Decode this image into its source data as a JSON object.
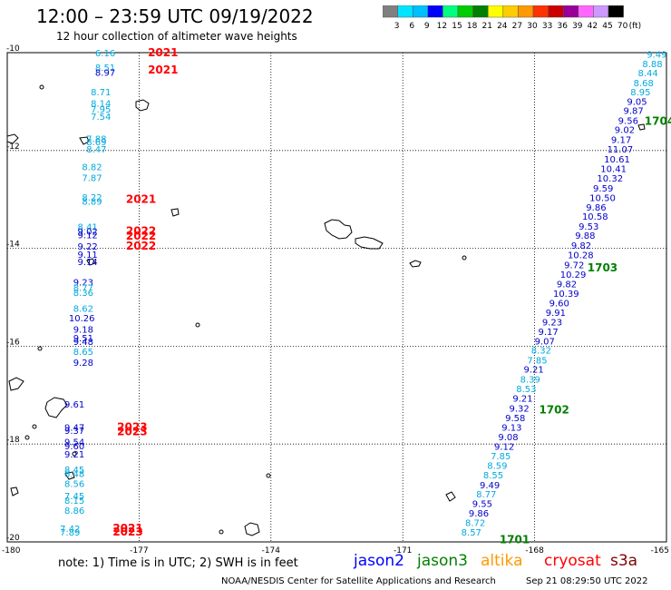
{
  "title": "12:00 – 23:59 UTC 09/19/2022",
  "subtitle": "12 hour collection of altimeter wave heights",
  "colorbar": {
    "labels": [
      "3",
      "6",
      "9",
      "12",
      "15",
      "18",
      "21",
      "24",
      "27",
      "30",
      "33",
      "36",
      "39",
      "42",
      "45",
      "70"
    ],
    "unit": "(ft)",
    "colors": [
      "#808080",
      "#00e5ff",
      "#00bfff",
      "#0000ff",
      "#00ff7f",
      "#00cc00",
      "#008000",
      "#ffff00",
      "#ffcc00",
      "#ff9900",
      "#ff3300",
      "#cc0000",
      "#990099",
      "#ff66ff",
      "#cc99ff",
      "#000000"
    ]
  },
  "map": {
    "lat_labels": [
      "-10",
      "-12",
      "-14",
      "-16",
      "-18",
      "-20"
    ],
    "lon_labels": [
      "-180",
      "-177",
      "-174",
      "-171",
      "-168",
      "-165"
    ],
    "tracks": [
      {
        "pass": "2021",
        "color": "#ff0000",
        "lon": -176.8,
        "lat": -10.0
      },
      {
        "pass": "2021",
        "color": "#ff0000",
        "lon": -176.8,
        "lat": -10.35
      },
      {
        "pass": "2021",
        "color": "#ff0000",
        "lon": -177.3,
        "lat": -13.0
      },
      {
        "pass": "2022",
        "color": "#ff0000",
        "lon": -177.3,
        "lat": -13.65
      },
      {
        "pass": "2022",
        "color": "#ff0000",
        "lon": -177.3,
        "lat": -13.75
      },
      {
        "pass": "2022",
        "color": "#ff0000",
        "lon": -177.3,
        "lat": -13.95
      },
      {
        "pass": "2023",
        "color": "#ff0000",
        "lon": -177.5,
        "lat": -17.65
      },
      {
        "pass": "2023",
        "color": "#ff0000",
        "lon": -177.5,
        "lat": -17.75
      },
      {
        "pass": "2021",
        "color": "#ff0000",
        "lon": -177.6,
        "lat": -19.72
      },
      {
        "pass": "2023",
        "color": "#ff0000",
        "lon": -177.6,
        "lat": -19.8
      },
      {
        "pass": "1704",
        "color": "#008000",
        "lon": -165.5,
        "lat": -11.4
      },
      {
        "pass": "1703",
        "color": "#008000",
        "lon": -166.8,
        "lat": -14.4
      },
      {
        "pass": "1702",
        "color": "#008000",
        "lon": -167.9,
        "lat": -17.3
      },
      {
        "pass": "1701",
        "color": "#008000",
        "lon": -168.8,
        "lat": -19.95
      }
    ],
    "left_values": [
      {
        "v": "6.16",
        "c": "#00aadd",
        "lon": -178.0,
        "lat": -10.0
      },
      {
        "v": "8.51",
        "c": "#00aadd",
        "lon": -178.0,
        "lat": -10.3
      },
      {
        "v": "8.97",
        "c": "#0000cc",
        "lon": -178.0,
        "lat": -10.4
      },
      {
        "v": "8.71",
        "c": "#00aadd",
        "lon": -178.1,
        "lat": -10.8
      },
      {
        "v": "8.14",
        "c": "#00aadd",
        "lon": -178.1,
        "lat": -11.03
      },
      {
        "v": "7.95",
        "c": "#00aadd",
        "lon": -178.1,
        "lat": -11.15
      },
      {
        "v": "7.54",
        "c": "#00aadd",
        "lon": -178.1,
        "lat": -11.3
      },
      {
        "v": "7.88",
        "c": "#00aadd",
        "lon": -178.2,
        "lat": -11.75
      },
      {
        "v": "8.69",
        "c": "#00aadd",
        "lon": -178.2,
        "lat": -11.82
      },
      {
        "v": "8.47",
        "c": "#00aadd",
        "lon": -178.2,
        "lat": -11.97
      },
      {
        "v": "8.82",
        "c": "#00aadd",
        "lon": -178.3,
        "lat": -12.33
      },
      {
        "v": "7.87",
        "c": "#00aadd",
        "lon": -178.3,
        "lat": -12.55
      },
      {
        "v": "8.22",
        "c": "#00aadd",
        "lon": -178.3,
        "lat": -12.95
      },
      {
        "v": "8.89",
        "c": "#00aadd",
        "lon": -178.3,
        "lat": -13.03
      },
      {
        "v": "8.41",
        "c": "#00aadd",
        "lon": -178.4,
        "lat": -13.55
      },
      {
        "v": "9.02",
        "c": "#0000cc",
        "lon": -178.4,
        "lat": -13.65
      },
      {
        "v": "9.12",
        "c": "#0000cc",
        "lon": -178.4,
        "lat": -13.72
      },
      {
        "v": "9.22",
        "c": "#0000cc",
        "lon": -178.4,
        "lat": -13.95
      },
      {
        "v": "9.11",
        "c": "#0000cc",
        "lon": -178.4,
        "lat": -14.12
      },
      {
        "v": "9.14",
        "c": "#0000cc",
        "lon": -178.4,
        "lat": -14.27
      },
      {
        "v": "9.23",
        "c": "#0000cc",
        "lon": -178.5,
        "lat": -14.68
      },
      {
        "v": "8.77",
        "c": "#00aadd",
        "lon": -178.5,
        "lat": -14.8
      },
      {
        "v": "8.36",
        "c": "#00aadd",
        "lon": -178.5,
        "lat": -14.9
      },
      {
        "v": "8.62",
        "c": "#00aadd",
        "lon": -178.5,
        "lat": -15.22
      },
      {
        "v": "10.26",
        "c": "#0000cc",
        "lon": -178.6,
        "lat": -15.42
      },
      {
        "v": "9.18",
        "c": "#0000cc",
        "lon": -178.5,
        "lat": -15.65
      },
      {
        "v": "9.51",
        "c": "#0000cc",
        "lon": -178.5,
        "lat": -15.83
      },
      {
        "v": "9.48",
        "c": "#0000cc",
        "lon": -178.5,
        "lat": -15.9
      },
      {
        "v": "8.65",
        "c": "#00aadd",
        "lon": -178.5,
        "lat": -16.1
      },
      {
        "v": "9.28",
        "c": "#0000cc",
        "lon": -178.5,
        "lat": -16.33
      },
      {
        "v": "9.61",
        "c": "#0000cc",
        "lon": -178.7,
        "lat": -17.18
      },
      {
        "v": "9.47",
        "c": "#0000cc",
        "lon": -178.7,
        "lat": -17.65
      },
      {
        "v": "9.37",
        "c": "#0000cc",
        "lon": -178.7,
        "lat": -17.72
      },
      {
        "v": "9.54",
        "c": "#0000cc",
        "lon": -178.7,
        "lat": -17.95
      },
      {
        "v": "9.60",
        "c": "#0000cc",
        "lon": -178.7,
        "lat": -18.03
      },
      {
        "v": "9.21",
        "c": "#0000cc",
        "lon": -178.7,
        "lat": -18.2
      },
      {
        "v": "8.45",
        "c": "#00aadd",
        "lon": -178.7,
        "lat": -18.52
      },
      {
        "v": "8.48",
        "c": "#00aadd",
        "lon": -178.7,
        "lat": -18.6
      },
      {
        "v": "8.56",
        "c": "#00aadd",
        "lon": -178.7,
        "lat": -18.8
      },
      {
        "v": "7.45",
        "c": "#00aadd",
        "lon": -178.7,
        "lat": -19.05
      },
      {
        "v": "8.15",
        "c": "#00aadd",
        "lon": -178.7,
        "lat": -19.15
      },
      {
        "v": "8.86",
        "c": "#00aadd",
        "lon": -178.7,
        "lat": -19.35
      },
      {
        "v": "7.42",
        "c": "#00aadd",
        "lon": -178.8,
        "lat": -19.72
      },
      {
        "v": "7.89",
        "c": "#00aadd",
        "lon": -178.8,
        "lat": -19.8
      }
    ],
    "right_values": [
      {
        "v": "9.49",
        "c": "#00aadd",
        "lon": -165.45,
        "lat": -10.03
      },
      {
        "v": "8.88",
        "c": "#00aadd",
        "lon": -165.55,
        "lat": -10.22
      },
      {
        "v": "8.44",
        "c": "#00aadd",
        "lon": -165.65,
        "lat": -10.41
      },
      {
        "v": "8.68",
        "c": "#00aadd",
        "lon": -165.75,
        "lat": -10.61
      },
      {
        "v": "8.95",
        "c": "#00aadd",
        "lon": -165.82,
        "lat": -10.8
      },
      {
        "v": "9.05",
        "c": "#0000cc",
        "lon": -165.9,
        "lat": -10.99
      },
      {
        "v": "9.87",
        "c": "#0000cc",
        "lon": -165.98,
        "lat": -11.18
      },
      {
        "v": "9.56",
        "c": "#0000cc",
        "lon": -166.1,
        "lat": -11.38
      },
      {
        "v": "9.02",
        "c": "#0000cc",
        "lon": -166.18,
        "lat": -11.57
      },
      {
        "v": "9.17",
        "c": "#0000cc",
        "lon": -166.26,
        "lat": -11.77
      },
      {
        "v": "11.07",
        "c": "#0000cc",
        "lon": -166.35,
        "lat": -11.97
      },
      {
        "v": "10.61",
        "c": "#0000cc",
        "lon": -166.42,
        "lat": -12.17
      },
      {
        "v": "10.41",
        "c": "#0000cc",
        "lon": -166.5,
        "lat": -12.37
      },
      {
        "v": "10.32",
        "c": "#0000cc",
        "lon": -166.58,
        "lat": -12.56
      },
      {
        "v": "9.59",
        "c": "#0000cc",
        "lon": -166.67,
        "lat": -12.76
      },
      {
        "v": "10.50",
        "c": "#0000cc",
        "lon": -166.75,
        "lat": -12.96
      },
      {
        "v": "9.86",
        "c": "#0000cc",
        "lon": -166.83,
        "lat": -13.15
      },
      {
        "v": "10.58",
        "c": "#0000cc",
        "lon": -166.92,
        "lat": -13.34
      },
      {
        "v": "9.53",
        "c": "#0000cc",
        "lon": -167.0,
        "lat": -13.54
      },
      {
        "v": "9.88",
        "c": "#0000cc",
        "lon": -167.08,
        "lat": -13.73
      },
      {
        "v": "9.82",
        "c": "#0000cc",
        "lon": -167.17,
        "lat": -13.93
      },
      {
        "v": "10.28",
        "c": "#0000cc",
        "lon": -167.25,
        "lat": -14.13
      },
      {
        "v": "9.72",
        "c": "#0000cc",
        "lon": -167.33,
        "lat": -14.33
      },
      {
        "v": "10.29",
        "c": "#0000cc",
        "lon": -167.42,
        "lat": -14.53
      },
      {
        "v": "9.82",
        "c": "#0000cc",
        "lon": -167.5,
        "lat": -14.72
      },
      {
        "v": "10.39",
        "c": "#0000cc",
        "lon": -167.58,
        "lat": -14.92
      },
      {
        "v": "9.60",
        "c": "#0000cc",
        "lon": -167.67,
        "lat": -15.11
      },
      {
        "v": "9.91",
        "c": "#0000cc",
        "lon": -167.75,
        "lat": -15.31
      },
      {
        "v": "9.23",
        "c": "#0000cc",
        "lon": -167.83,
        "lat": -15.5
      },
      {
        "v": "9.17",
        "c": "#0000cc",
        "lon": -167.92,
        "lat": -15.7
      },
      {
        "v": "9.07",
        "c": "#0000cc",
        "lon": -168.0,
        "lat": -15.89
      },
      {
        "v": "8.32",
        "c": "#00aadd",
        "lon": -168.08,
        "lat": -16.08
      },
      {
        "v": "7.85",
        "c": "#00aadd",
        "lon": -168.17,
        "lat": -16.28
      },
      {
        "v": "9.21",
        "c": "#0000cc",
        "lon": -168.25,
        "lat": -16.47
      },
      {
        "v": "8.39",
        "c": "#00aadd",
        "lon": -168.33,
        "lat": -16.67
      },
      {
        "v": "8.53",
        "c": "#00aadd",
        "lon": -168.42,
        "lat": -16.86
      },
      {
        "v": "9.21",
        "c": "#0000cc",
        "lon": -168.5,
        "lat": -17.06
      },
      {
        "v": "9.32",
        "c": "#0000cc",
        "lon": -168.58,
        "lat": -17.26
      },
      {
        "v": "9.58",
        "c": "#0000cc",
        "lon": -168.67,
        "lat": -17.46
      },
      {
        "v": "9.13",
        "c": "#0000cc",
        "lon": -168.75,
        "lat": -17.65
      },
      {
        "v": "9.08",
        "c": "#0000cc",
        "lon": -168.83,
        "lat": -17.85
      },
      {
        "v": "9.12",
        "c": "#0000cc",
        "lon": -168.92,
        "lat": -18.04
      },
      {
        "v": "7.85",
        "c": "#00aadd",
        "lon": -169.0,
        "lat": -18.24
      },
      {
        "v": "8.59",
        "c": "#00aadd",
        "lon": -169.08,
        "lat": -18.43
      },
      {
        "v": "8.55",
        "c": "#00aadd",
        "lon": -169.17,
        "lat": -18.63
      },
      {
        "v": "9.49",
        "c": "#0000cc",
        "lon": -169.25,
        "lat": -18.83
      },
      {
        "v": "8.77",
        "c": "#00aadd",
        "lon": -169.33,
        "lat": -19.02
      },
      {
        "v": "9.55",
        "c": "#0000cc",
        "lon": -169.42,
        "lat": -19.21
      },
      {
        "v": "9.86",
        "c": "#0000cc",
        "lon": -169.5,
        "lat": -19.41
      },
      {
        "v": "8.72",
        "c": "#00aadd",
        "lon": -169.58,
        "lat": -19.6
      },
      {
        "v": "8.57",
        "c": "#00aadd",
        "lon": -169.67,
        "lat": -19.8
      }
    ]
  },
  "note": "note:  1) Time is in UTC; 2) SWH is in feet",
  "satellites": [
    {
      "name": "jason2",
      "color": "#0000ff"
    },
    {
      "name": "jason3",
      "color": "#008000"
    },
    {
      "name": "altika",
      "color": "#ff9900"
    },
    {
      "name": "cryosat",
      "color": "#ff0000"
    },
    {
      "name": "s3a",
      "color": "#800000"
    }
  ],
  "credit": "NOAA/NESDIS Center for Satellite Applications and Research",
  "stamp": "Sep 21 08:29:50 UTC 2022"
}
